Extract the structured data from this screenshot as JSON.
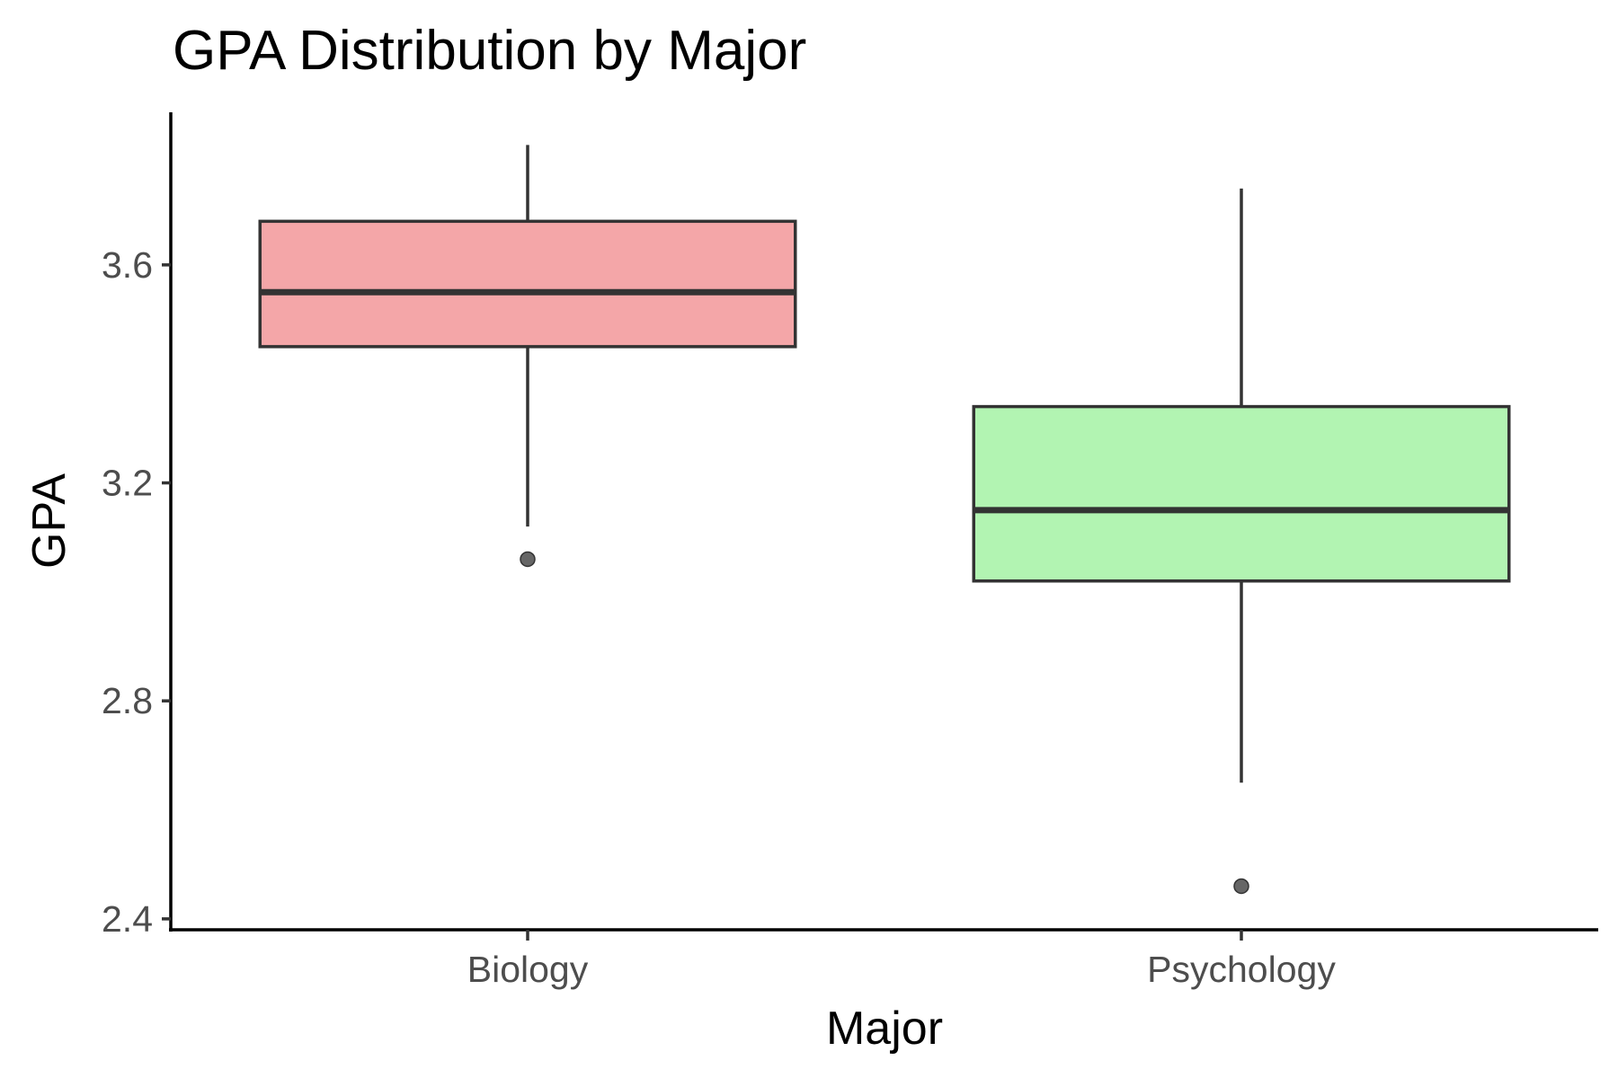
{
  "chart_data": {
    "type": "boxplot",
    "title": "GPA Distribution by Major",
    "xlabel": "Major",
    "ylabel": "GPA",
    "categories": [
      "Biology",
      "Psychology"
    ],
    "ylim": [
      2.38,
      3.88
    ],
    "yticks": [
      "2.4",
      "2.8",
      "3.2",
      "3.6"
    ],
    "boxes": [
      {
        "category": "Biology",
        "lower_whisker": 3.12,
        "q1": 3.45,
        "median": 3.55,
        "q3": 3.68,
        "upper_whisker": 3.82,
        "outliers": [
          3.06
        ],
        "fill": "#F4A6A8"
      },
      {
        "category": "Psychology",
        "lower_whisker": 2.65,
        "q1": 3.02,
        "median": 3.15,
        "q3": 3.34,
        "upper_whisker": 3.74,
        "outliers": [
          2.46
        ],
        "fill": "#B2F4B2"
      }
    ],
    "grid": false,
    "legend": "none"
  }
}
